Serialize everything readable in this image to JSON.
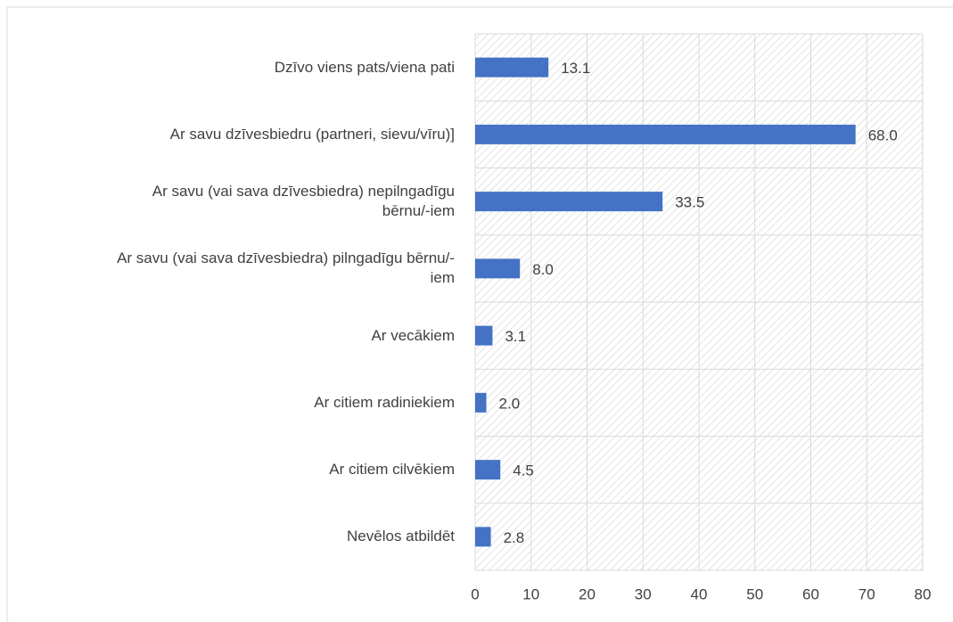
{
  "chart_data": {
    "type": "hbar",
    "categories": [
      "Dzīvo viens pats/viena pati",
      "Ar savu dzīvesbiedru (partneri, sievu/vīru)]",
      "Ar savu (vai sava dzīvesbiedra) nepilngadīgu\nbērnu/-iem",
      "Ar savu (vai sava dzīvesbiedra) pilngadīgu bērnu/-\niem",
      "Ar vecākiem",
      "Ar citiem radiniekiem",
      "Ar citiem cilvēkiem",
      "Nevēlos atbildēt"
    ],
    "values": [
      13.1,
      68,
      33.5,
      8,
      3.1,
      2,
      4.5,
      2.8
    ],
    "value_labels": [
      "13.1",
      "68.0",
      "33.5",
      "8.0",
      "3.1",
      "2.0",
      "4.5",
      "2.8"
    ],
    "color": "#4472c4",
    "xlim": [
      0,
      80
    ],
    "xticks": [
      0,
      10,
      20,
      30,
      40,
      50,
      60,
      70,
      80
    ],
    "grid": true
  }
}
